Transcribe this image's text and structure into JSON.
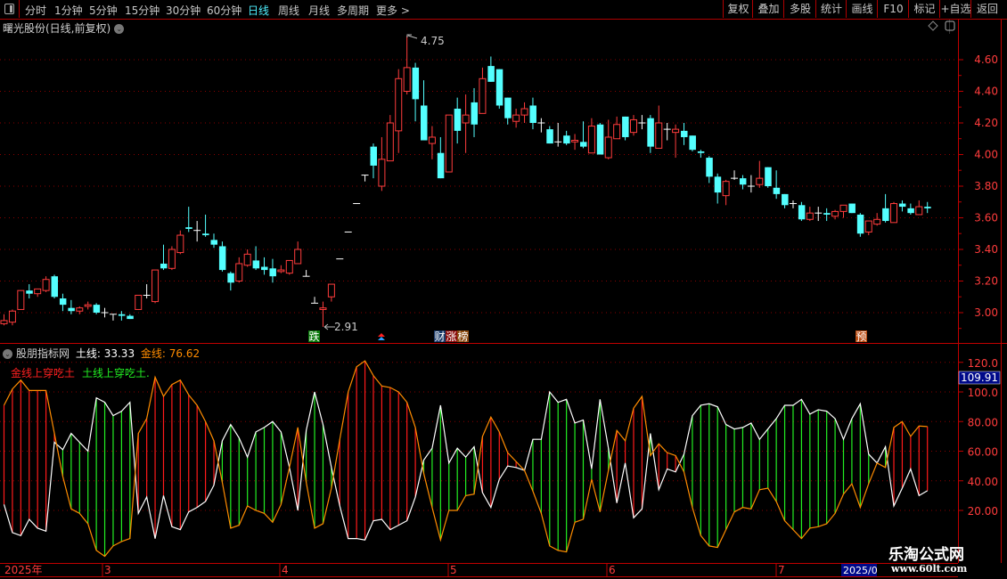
{
  "toolbar": {
    "periods": [
      "分时",
      "1分钟",
      "5分钟",
      "15分钟",
      "30分钟",
      "60分钟",
      "日线",
      "周线",
      "月线",
      "多周期",
      "更多 >"
    ],
    "active_period": "日线",
    "buttons": [
      "复权",
      "叠加",
      "多股",
      "统计",
      "画线",
      "F10",
      "标记",
      "+自选",
      "返回"
    ]
  },
  "main": {
    "title": "曙光股份(日线,前复权)",
    "high_label": "4.75",
    "low_label": "2.91",
    "price_ticks": [
      "4.60",
      "4.40",
      "4.20",
      "4.00",
      "3.80",
      "3.60",
      "3.40",
      "3.20",
      "3.00"
    ],
    "markers": [
      "跌",
      "财",
      "涨",
      "榜",
      "预"
    ]
  },
  "indicator": {
    "name": "股朋指标网",
    "earth_label": "土线:",
    "earth_value": "33.33",
    "gold_label": "金线:",
    "gold_value": "76.62",
    "legend_gold": "金线上穿吃土",
    "legend_earth": "土线上穿吃土.",
    "current_value": "109.91",
    "ticks": [
      "120.0",
      "100.0",
      "80.00",
      "60.00",
      "40.00",
      "20.00"
    ]
  },
  "date_axis": {
    "labels": [
      "2025年",
      "3",
      "4",
      "5",
      "6",
      "7"
    ],
    "cursor_label": "2025/0"
  },
  "watermark": {
    "name": "乐淘公式网",
    "url": "www.60lt.com"
  },
  "colors": {
    "up": "#ff3c3c",
    "down": "#54ffff",
    "flat": "#ffffff",
    "gold": "#ff8c00",
    "earth": "#ffffff",
    "bar_gold": "#ff1a1a",
    "bar_earth": "#22ee22",
    "grid": "#8a0000",
    "axis": "#c00000"
  },
  "chart_data": [
    {
      "type": "candlestick",
      "price_range": [
        2.85,
        4.8
      ],
      "ohlc": [
        [
          2.93,
          2.99,
          2.92,
          2.95
        ],
        [
          2.94,
          3.02,
          2.92,
          3.01
        ],
        [
          3.02,
          3.14,
          3.02,
          3.14
        ],
        [
          3.14,
          3.18,
          3.09,
          3.12
        ],
        [
          3.12,
          3.15,
          3.1,
          3.15
        ],
        [
          3.14,
          3.23,
          3.13,
          3.21
        ],
        [
          3.23,
          3.24,
          3.09,
          3.1
        ],
        [
          3.09,
          3.12,
          3.01,
          3.05
        ],
        [
          3.03,
          3.08,
          2.99,
          3.01
        ],
        [
          3.01,
          3.04,
          2.99,
          3.03
        ],
        [
          3.04,
          3.07,
          3.02,
          3.05
        ],
        [
          3.05,
          3.06,
          2.99,
          3.0
        ],
        [
          3.0,
          3.03,
          2.97,
          3.0
        ],
        [
          2.99,
          2.99,
          2.95,
          2.99
        ],
        [
          2.99,
          3.01,
          2.95,
          2.98
        ],
        [
          2.98,
          2.99,
          2.96,
          2.96
        ],
        [
          3.02,
          3.11,
          3.02,
          3.11
        ],
        [
          3.11,
          3.18,
          3.09,
          3.11
        ],
        [
          3.07,
          3.27,
          3.06,
          3.27
        ],
        [
          3.31,
          3.43,
          3.27,
          3.28
        ],
        [
          3.28,
          3.42,
          3.27,
          3.4
        ],
        [
          3.38,
          3.52,
          3.37,
          3.49
        ],
        [
          3.54,
          3.67,
          3.51,
          3.53
        ],
        [
          3.52,
          3.58,
          3.45,
          3.52
        ],
        [
          3.5,
          3.62,
          3.48,
          3.49
        ],
        [
          3.46,
          3.5,
          3.41,
          3.43
        ],
        [
          3.42,
          3.45,
          3.26,
          3.27
        ],
        [
          3.25,
          3.26,
          3.14,
          3.19
        ],
        [
          3.2,
          3.35,
          3.19,
          3.31
        ],
        [
          3.3,
          3.4,
          3.29,
          3.37
        ],
        [
          3.33,
          3.42,
          3.27,
          3.28
        ],
        [
          3.29,
          3.35,
          3.24,
          3.27
        ],
        [
          3.28,
          3.34,
          3.19,
          3.23
        ],
        [
          3.26,
          3.3,
          3.25,
          3.27
        ],
        [
          3.25,
          3.33,
          3.24,
          3.33
        ],
        [
          3.31,
          3.45,
          3.31,
          3.4
        ],
        [
          3.23,
          3.27,
          3.23,
          3.23
        ],
        [
          3.06,
          3.1,
          3.06,
          3.06
        ],
        [
          3.02,
          3.07,
          2.91,
          3.03
        ],
        [
          3.1,
          3.18,
          3.07,
          3.18
        ],
        [
          3.34,
          3.34,
          3.34,
          3.34
        ],
        [
          3.51,
          3.51,
          3.51,
          3.51
        ],
        [
          3.69,
          3.69,
          3.69,
          3.69
        ],
        [
          3.87,
          3.87,
          3.83,
          3.87
        ],
        [
          4.05,
          4.07,
          3.85,
          3.93
        ],
        [
          3.8,
          4.11,
          3.77,
          3.97
        ],
        [
          3.96,
          4.25,
          3.96,
          4.2
        ],
        [
          4.15,
          4.54,
          4.01,
          4.48
        ],
        [
          4.4,
          4.75,
          4.38,
          4.55
        ],
        [
          4.55,
          4.58,
          4.21,
          4.35
        ],
        [
          4.31,
          4.47,
          4.09,
          4.09
        ],
        [
          4.07,
          4.18,
          3.97,
          4.11
        ],
        [
          4.01,
          4.11,
          3.85,
          3.85
        ],
        [
          3.89,
          4.25,
          3.89,
          4.25
        ],
        [
          4.29,
          4.36,
          4.07,
          4.15
        ],
        [
          4.2,
          4.38,
          4.01,
          4.25
        ],
        [
          4.33,
          4.42,
          4.11,
          4.19
        ],
        [
          4.26,
          4.55,
          4.26,
          4.48
        ],
        [
          4.56,
          4.62,
          4.46,
          4.46
        ],
        [
          4.54,
          4.54,
          4.29,
          4.31
        ],
        [
          4.36,
          4.36,
          4.19,
          4.23
        ],
        [
          4.21,
          4.29,
          4.17,
          4.25
        ],
        [
          4.25,
          4.33,
          4.2,
          4.29
        ],
        [
          4.31,
          4.36,
          4.16,
          4.2
        ],
        [
          4.2,
          4.23,
          4.14,
          4.2
        ],
        [
          4.16,
          4.18,
          4.07,
          4.07
        ],
        [
          4.08,
          4.2,
          4.05,
          4.08
        ],
        [
          4.12,
          4.15,
          4.06,
          4.07
        ],
        [
          4.08,
          4.13,
          4.03,
          4.09
        ],
        [
          4.08,
          4.21,
          4.04,
          4.05
        ],
        [
          4.01,
          4.23,
          4.01,
          4.18
        ],
        [
          4.19,
          4.2,
          4.0,
          4.0
        ],
        [
          3.98,
          4.22,
          3.97,
          4.11
        ],
        [
          4.1,
          4.24,
          4.1,
          4.19
        ],
        [
          4.24,
          4.24,
          4.09,
          4.11
        ],
        [
          4.14,
          4.25,
          4.12,
          4.22
        ],
        [
          4.2,
          4.25,
          4.16,
          4.2
        ],
        [
          4.23,
          4.25,
          4.01,
          4.05
        ],
        [
          4.04,
          4.31,
          4.04,
          4.2
        ],
        [
          4.16,
          4.2,
          4.09,
          4.16
        ],
        [
          4.14,
          4.19,
          3.98,
          4.16
        ],
        [
          4.15,
          4.2,
          4.06,
          4.11
        ],
        [
          4.12,
          4.12,
          4.02,
          4.03
        ],
        [
          4.02,
          4.03,
          3.98,
          4.01
        ],
        [
          3.98,
          3.99,
          3.82,
          3.86
        ],
        [
          3.86,
          3.88,
          3.69,
          3.76
        ],
        [
          3.74,
          3.84,
          3.68,
          3.83
        ],
        [
          3.85,
          3.9,
          3.84,
          3.85
        ],
        [
          3.85,
          3.87,
          3.78,
          3.81
        ],
        [
          3.8,
          3.87,
          3.76,
          3.8
        ],
        [
          3.81,
          3.96,
          3.79,
          3.85
        ],
        [
          3.92,
          3.92,
          3.79,
          3.8
        ],
        [
          3.79,
          3.9,
          3.72,
          3.75
        ],
        [
          3.75,
          3.75,
          3.66,
          3.68
        ],
        [
          3.69,
          3.71,
          3.66,
          3.69
        ],
        [
          3.68,
          3.7,
          3.58,
          3.59
        ],
        [
          3.59,
          3.67,
          3.58,
          3.63
        ],
        [
          3.63,
          3.67,
          3.58,
          3.63
        ],
        [
          3.63,
          3.66,
          3.58,
          3.62
        ],
        [
          3.61,
          3.65,
          3.59,
          3.64
        ],
        [
          3.64,
          3.68,
          3.6,
          3.68
        ],
        [
          3.69,
          3.69,
          3.63,
          3.63
        ],
        [
          3.62,
          3.63,
          3.48,
          3.5
        ],
        [
          3.51,
          3.58,
          3.49,
          3.58
        ],
        [
          3.56,
          3.63,
          3.55,
          3.59
        ],
        [
          3.66,
          3.75,
          3.57,
          3.58
        ],
        [
          3.57,
          3.7,
          3.57,
          3.69
        ],
        [
          3.69,
          3.71,
          3.64,
          3.67
        ],
        [
          3.66,
          3.69,
          3.62,
          3.63
        ],
        [
          3.62,
          3.71,
          3.62,
          3.67
        ],
        [
          3.67,
          3.7,
          3.63,
          3.66
        ]
      ]
    },
    {
      "type": "line",
      "ylim": [
        -14,
        128
      ],
      "series": [
        {
          "name": "金线",
          "values": [
            91,
            102,
            108,
            101,
            101,
            101,
            72,
            43,
            21,
            18,
            11,
            -7,
            -11,
            -4,
            -1,
            1,
            72,
            82,
            110,
            97,
            105,
            108,
            98,
            91,
            80,
            67,
            39,
            8,
            10,
            23,
            20,
            18,
            12,
            24,
            49,
            76,
            39,
            8,
            11,
            35,
            68,
            100,
            117,
            121,
            111,
            104,
            103,
            100,
            93,
            76,
            45,
            22,
            0,
            20,
            20,
            30,
            31,
            70,
            83,
            73,
            59,
            53,
            47,
            33,
            18,
            -4,
            -7,
            -8,
            12,
            14,
            41,
            19,
            47,
            74,
            67,
            89,
            97,
            57,
            65,
            59,
            57,
            46,
            22,
            3,
            -4,
            -5,
            7,
            19,
            22,
            21,
            34,
            35,
            26,
            13,
            7,
            1,
            8,
            9,
            11,
            18,
            31,
            38,
            22,
            38,
            52,
            49,
            76,
            80,
            70,
            77,
            76.62
          ]
        },
        {
          "name": "土线",
          "values": [
            24,
            5,
            3,
            14,
            8,
            6,
            66,
            61,
            72,
            66,
            60,
            96,
            93,
            84,
            87,
            93,
            18,
            29,
            1,
            30,
            9,
            7,
            19,
            22,
            26,
            37,
            67,
            78,
            69,
            56,
            73,
            76,
            80,
            73,
            49,
            20,
            74,
            100,
            78,
            49,
            23,
            1,
            1,
            0,
            13,
            14,
            7,
            10,
            13,
            29,
            54,
            62,
            91,
            52,
            62,
            56,
            63,
            32,
            22,
            41,
            50,
            49,
            47,
            68,
            68,
            100,
            93,
            95,
            79,
            81,
            48,
            95,
            62,
            25,
            52,
            15,
            21,
            72,
            34,
            48,
            46,
            58,
            84,
            91,
            92,
            90,
            78,
            75,
            76,
            79,
            68,
            75,
            82,
            91,
            91,
            95,
            85,
            88,
            87,
            82,
            68,
            82,
            92,
            58,
            52,
            63,
            23,
            35,
            48,
            30,
            33.33
          ]
        }
      ]
    }
  ]
}
